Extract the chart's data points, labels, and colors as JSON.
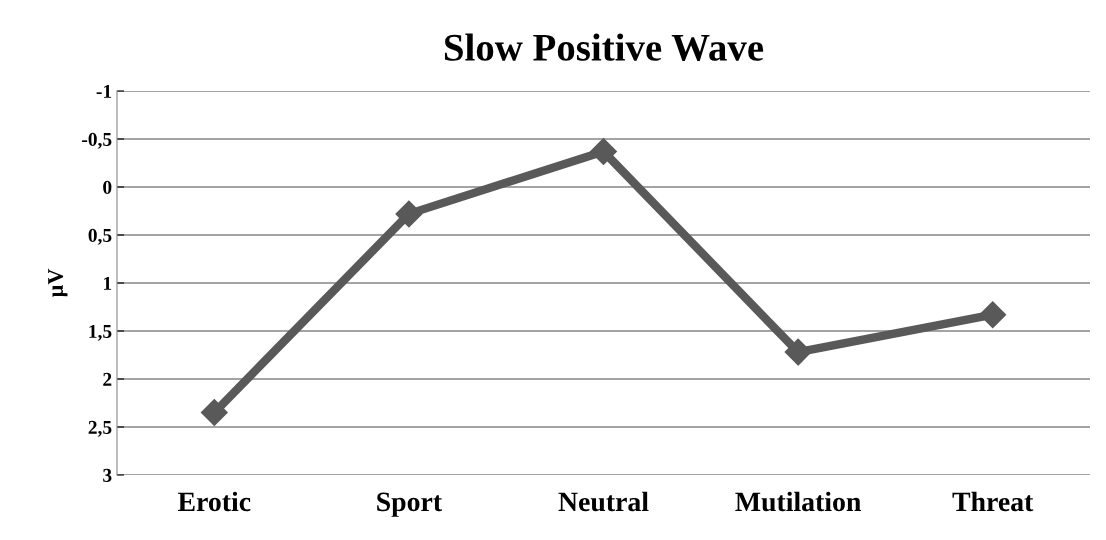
{
  "chart_data": {
    "type": "line",
    "title": "Slow Positive Wave",
    "ylabel": "µV",
    "categories": [
      "Erotic",
      "Sport",
      "Neutral",
      "Mutilation",
      "Threat"
    ],
    "series": [
      {
        "color": "#595959",
        "values": [
          2.35,
          0.28,
          -0.37,
          1.72,
          1.33
        ]
      }
    ],
    "ylim": [
      3,
      -1
    ],
    "yticks": [
      {
        "value": -1,
        "label": "-1"
      },
      {
        "value": -0.5,
        "label": "-0,5"
      },
      {
        "value": 0,
        "label": "0"
      },
      {
        "value": 0.5,
        "label": "0,5"
      },
      {
        "value": 1,
        "label": "1"
      },
      {
        "value": 1.5,
        "label": "1,5"
      },
      {
        "value": 2,
        "label": "2"
      },
      {
        "value": 2.5,
        "label": "2,5"
      },
      {
        "value": 3,
        "label": "3"
      }
    ],
    "grid": "y",
    "marker": "diamond",
    "line_style": "solid"
  }
}
